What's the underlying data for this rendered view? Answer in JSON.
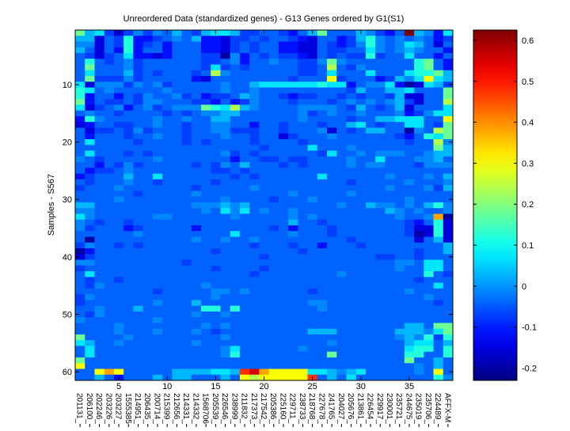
{
  "chart_data": {
    "type": "heatmap",
    "title": "Unreordered Data (standardized genes) - G13 Genes ordered by G1(S1)",
    "xlabel": "",
    "ylabel": "Samples - S567",
    "colormap": "jet",
    "clim": [
      -0.23,
      0.625
    ],
    "colorbar_ticks": [
      -0.2,
      -0.1,
      0,
      0.1,
      0.2,
      0.3,
      0.4,
      0.5,
      0.6
    ],
    "colorbar_tick_labels": [
      "-0.2",
      "-0.1",
      "0",
      "0.1",
      "0.2",
      "0.3",
      "0.4",
      "0.5",
      "0.6"
    ],
    "x_ticks": [
      5,
      10,
      15,
      20,
      25,
      30,
      35
    ],
    "x_tick_labels": [
      "5",
      "10",
      "15",
      "20",
      "25",
      "30",
      "35"
    ],
    "y_ticks": [
      10,
      20,
      30,
      40,
      50,
      60
    ],
    "y_tick_labels": [
      "10",
      "20",
      "30",
      "40",
      "50",
      "60"
    ],
    "genes": [
      "201131_",
      "206100_",
      "202246_",
      "203226_",
      "203227_",
      "1555385",
      "214951_",
      "206435_",
      "200714_",
      "215399_",
      "212656_",
      "214331_",
      "214332_",
      "1568706",
      "205539_",
      "226546_",
      "238999_",
      "211832_",
      "217373_",
      "217542_",
      "205386_",
      "225160_",
      "229711_",
      "238733_",
      "218768_",
      "227678_",
      "241765_",
      "204027_",
      "205676_",
      "213861_",
      "226454_",
      "229917_",
      "230001_",
      "235721_",
      "244675_",
      "235019_",
      "235706_",
      "224489_",
      "AFFX-M"
    ],
    "n_samples": 61,
    "value_levels": {
      "0": -0.2,
      "1": -0.15,
      "2": -0.11,
      "3": -0.07,
      "4": -0.04,
      "5": -0.01,
      "6": 0.03,
      "7": 0.07,
      "8": 0.12,
      "9": 0.18,
      "a": 0.24,
      "b": 0.3,
      "c": 0.38,
      "d": 0.48,
      "e": 0.55,
      "f": 0.62
    },
    "rows": [
      "9673135354643677633443246944465324f6527",
      "661438223454622133434432144236854545423",
      "551438234244422134344221143235854576414",
      "641428244244422134344221143344754565442",
      "431347221244433052434332143433834474424",
      "484345344444433452445443359544444448942",
      "49444534444443734344444334a435444448942",
      "47444634344434a54444444334744474447889 6",
      "49333534444421444444443444b344423657b76",
      "715553545344444544677777787724557201763",
      "874544444544444544544444444436446674449",
      "824424354453423346544323344343443611449",
      "92433435544433242354443444345454563144a",
      "7134524534555987a654444555543643461444 7",
      "454434444343455664444445345445444523577",
      "28544444544544664444444544443446677744b",
      "124433445443445544244344434467434477439",
      "4133435344434455333443444514346644054a9",
      "424443445443444544344134445444444324879",
      "4744443444434344443444434444444444344a5",
      "444444444444444444434444744454444444496",
      "474443434444444534344444437445455544566",
      "543444445444444424433433444454474445564",
      "442435344444343546444343444454554443555",
      "423345444444443343444444444444444444444",
      "234446447444444434344444474444445444546",
      "434445443444443444444444444434444454445",
      "344454444444344444544444444444445444536",
      "444444344444544444444454444454444444444",
      "444454444444444544443444544444444454444",
      "664444444444555656444444444544655454685",
      "554444444444454757454454444444446545445",
      "7544444455444444544444545444444445445c0",
      "543443444444444444444464434444444432481",
      "534442344444244444443424443444444431181",
      "444444544444444474444454443444444430181",
      "404444444444544544544444444434444441461",
      "354434344444444444344434424443444444446",
      "024444444444443444444443444444444443446",
      "134444444444444444434444444444433443444",
      "554444444443444444444444444444444554774",
      "344444444444443444434444444444444544774",
      "474444444444444444344444444544444444843",
      "434434444444444444444444444444444443444",
      "435444444444454444444444444444444444474",
      "444444443444445545444444344444444454444",
      "354444444444445444444444444444444444544",
      "344444445444644444444444554444444444434",
      "445444644444488484444444454444444444444",
      "435444444444544544444444444444444444444",
      "544444445444444444444444444444444444444",
      "444454444444454544444444444444444466499",
      "444454445444543444444444666444444666579",
      "944445444444444544444444444444444565838",
      "764454444444544444444444445444444467746",
      "474444444444444574444445444444444478848",
      "474444444444444584444444449444444488448",
      "944444444444444444444444444444444494464",
      "b44444444444444444444444444444444445464",
      "44bcb444446666776decbbbb7765674444454b4",
      "44642444646644464babbbbbd46474444444485"
    ]
  }
}
